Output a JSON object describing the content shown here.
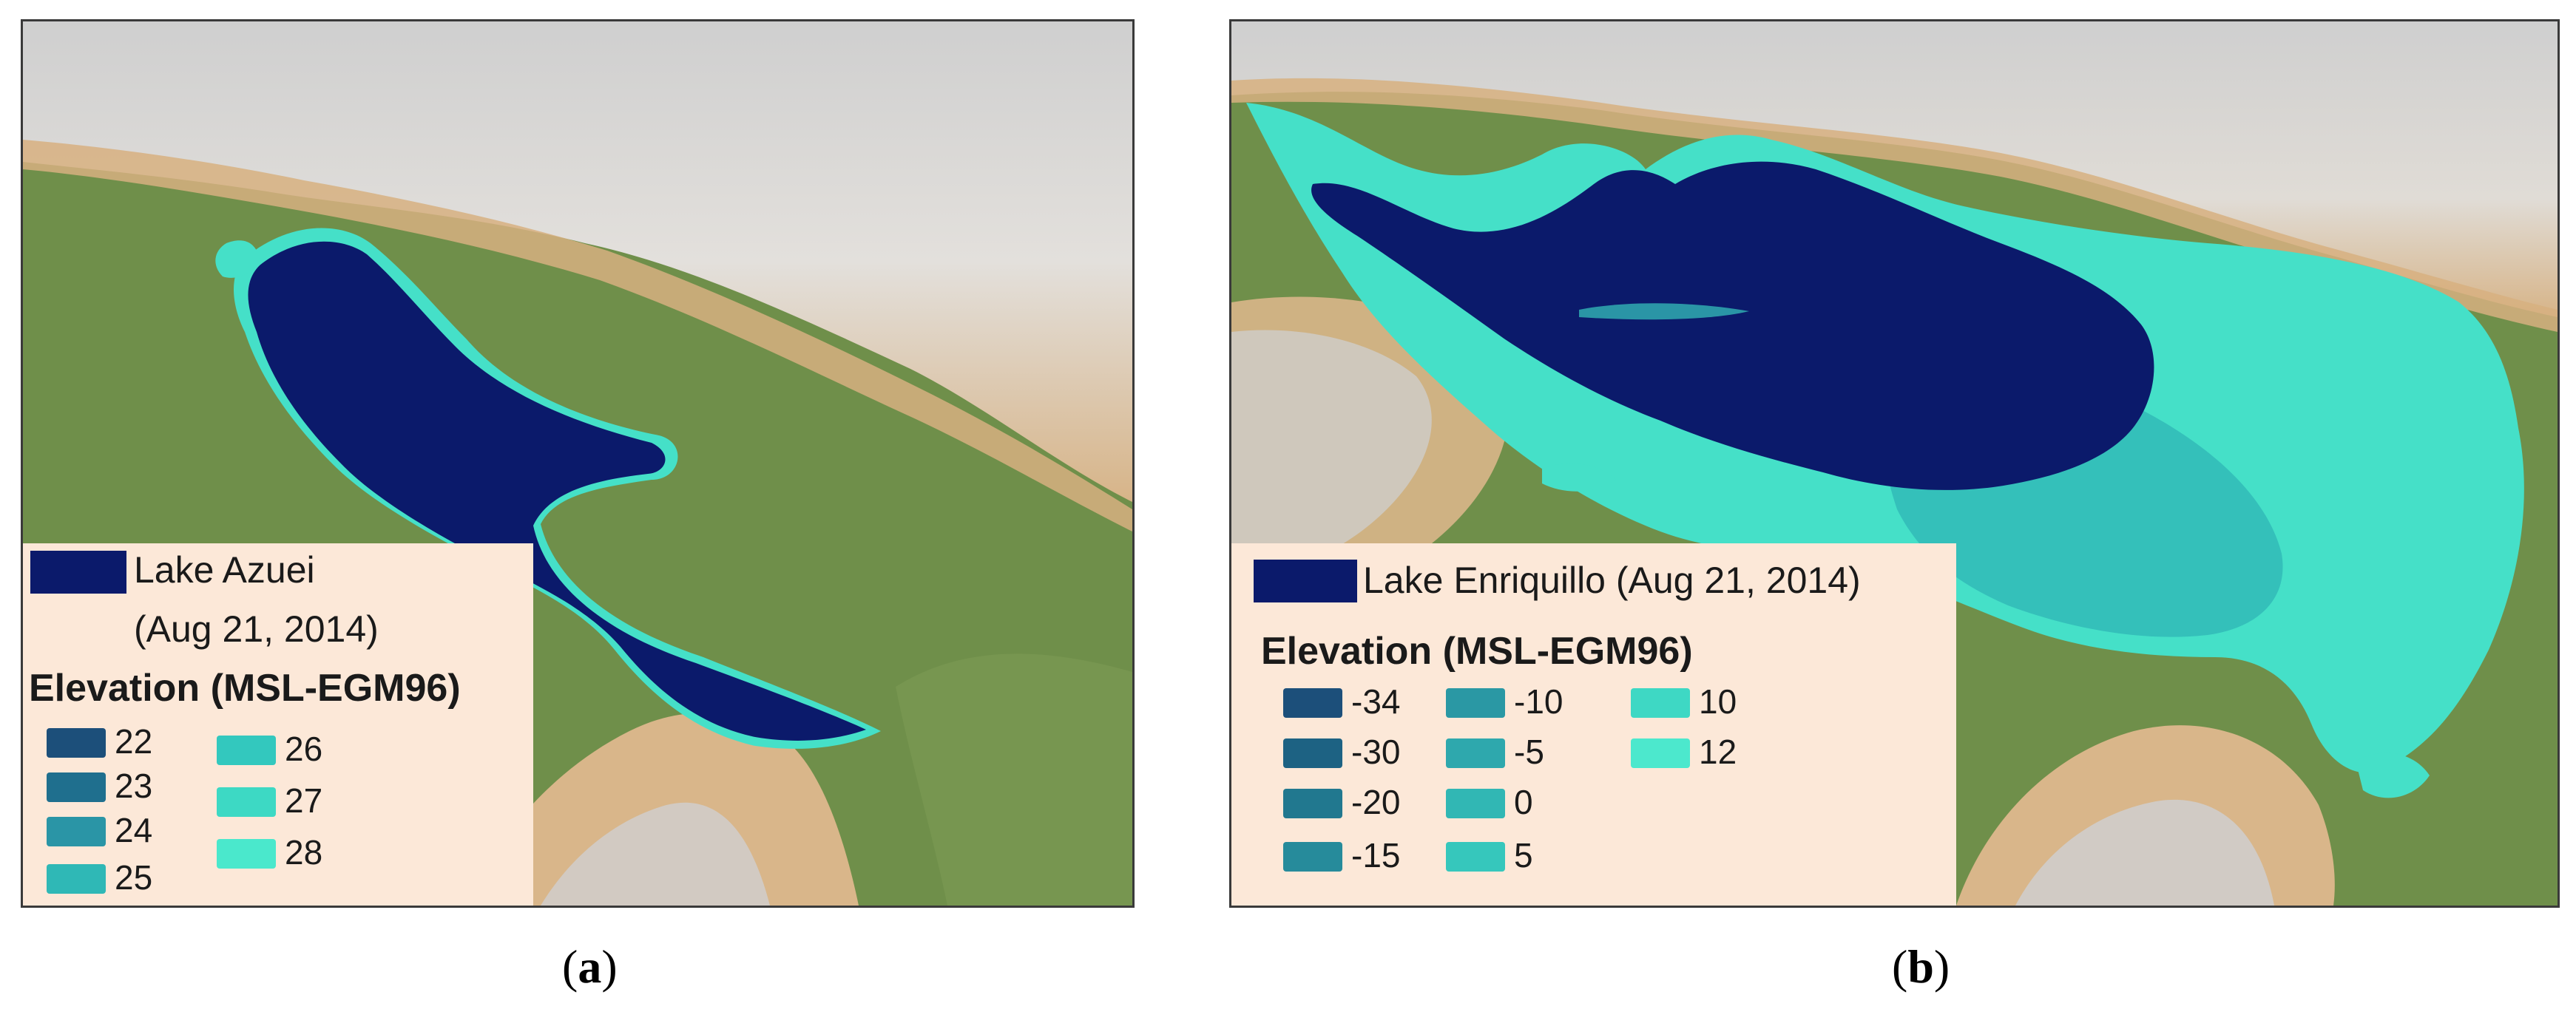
{
  "panels": [
    {
      "id": "a",
      "lake_label_line1": "Lake Azuei",
      "lake_label_line2": "(Aug 21, 2014)",
      "legend_title": "Elevation (MSL-EGM96)",
      "lake_color": "#0b1a6b",
      "elevation_classes": [
        {
          "label": "22",
          "color": "#1c4f7a"
        },
        {
          "label": "23",
          "color": "#1f6f8e"
        },
        {
          "label": "24",
          "color": "#2a95a6"
        },
        {
          "label": "25",
          "color": "#2fb8b6"
        },
        {
          "label": "26",
          "color": "#33c8be"
        },
        {
          "label": "27",
          "color": "#3dd9c4"
        },
        {
          "label": "28",
          "color": "#4ae8cc"
        }
      ],
      "caption_letter": "a"
    },
    {
      "id": "b",
      "lake_label": "Lake Enriquillo (Aug 21, 2014)",
      "legend_title": "Elevation (MSL-EGM96)",
      "lake_color": "#0b1a6b",
      "elevation_classes": [
        {
          "label": "-34",
          "color": "#1c4f7a"
        },
        {
          "label": "-30",
          "color": "#1d6283"
        },
        {
          "label": "-20",
          "color": "#21788f"
        },
        {
          "label": "-15",
          "color": "#268b9b"
        },
        {
          "label": "-10",
          "color": "#2a98a4"
        },
        {
          "label": "-5",
          "color": "#2ea8ad"
        },
        {
          "label": "0",
          "color": "#31b7b4"
        },
        {
          "label": "5",
          "color": "#36c7bc"
        },
        {
          "label": "10",
          "color": "#3ed8c4"
        },
        {
          "label": "12",
          "color": "#4ce8cd"
        }
      ],
      "caption_letter": "b"
    }
  ],
  "map_colors": {
    "lowland_green": "#6f8f4a",
    "foothill_tan": "#d9b68a",
    "mountain_gray": "#c9c9c9",
    "shallow_cyan": "#45e0c8"
  }
}
